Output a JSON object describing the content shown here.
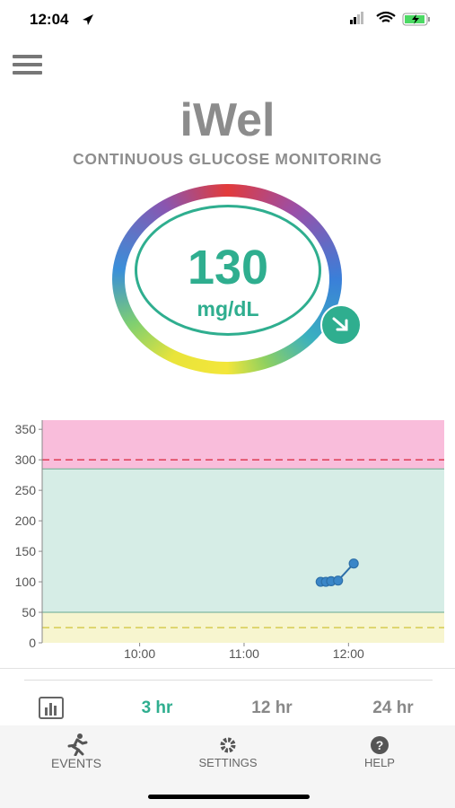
{
  "status_bar": {
    "time": "12:04"
  },
  "header": {
    "title": "iWel",
    "subtitle": "CONTINUOUS GLUCOSE MONITORING"
  },
  "reading": {
    "value": 130,
    "unit": "mg/dL"
  },
  "chart_data": {
    "type": "line",
    "x": [
      "11:44",
      "11:47",
      "11:50",
      "11:54",
      "12:03"
    ],
    "values": [
      100,
      100,
      101,
      102,
      130
    ],
    "color": "#2d6fa8",
    "xlim": [
      "09:04",
      "12:55"
    ],
    "xticks": [
      {
        "value": "10:00",
        "label": "10:00"
      },
      {
        "value": "11:00",
        "label": "11:00"
      },
      {
        "value": "12:00",
        "label": "12:00"
      }
    ],
    "ylim": [
      0,
      365
    ],
    "yticks": [
      0,
      50,
      100,
      150,
      200,
      250,
      300,
      350
    ],
    "bands": [
      {
        "from": 285,
        "to": 365,
        "color": "#f9bddb"
      },
      {
        "from": 50,
        "to": 285,
        "color": "#d6ede6"
      },
      {
        "from": 0,
        "to": 50,
        "color": "#f7f5cf"
      }
    ],
    "reference_lines": [
      {
        "value": 300,
        "color": "#e0455e"
      },
      {
        "value": 25,
        "color": "#d9cf5c"
      }
    ]
  },
  "tabs": [
    "3 hr",
    "12 hr",
    "24 hr"
  ],
  "nav": [
    "EVENTS",
    "SETTINGS",
    "HELP"
  ]
}
